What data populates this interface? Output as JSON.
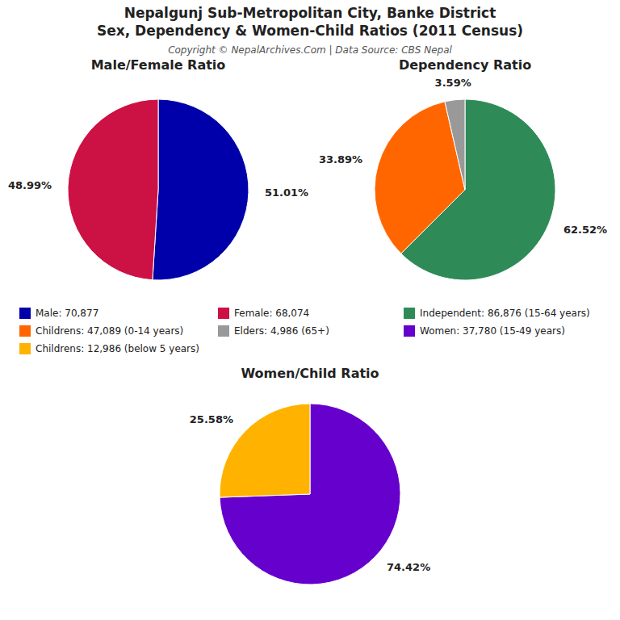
{
  "title": [
    "Nepalgunj Sub-Metropolitan City, Banke District",
    "Sex, Dependency & Women-Child Ratios (2011 Census)"
  ],
  "subtitle": "Copyright © NepalArchives.Com | Data Source: CBS Nepal",
  "chart_data": [
    {
      "type": "pie",
      "title": "Male/Female Ratio",
      "categories": [
        "Male: 70,877",
        "Female: 68,074"
      ],
      "values": [
        51.01,
        48.99
      ],
      "value_labels": [
        "51.01%",
        "48.99%"
      ],
      "colors": [
        "#0000AA",
        "#CC1144"
      ],
      "data_labels": true,
      "legend": true
    },
    {
      "type": "pie",
      "title": "Dependency Ratio",
      "categories": [
        "Independent: 86,876 (15-64 years)",
        "Childrens: 47,089 (0-14 years)",
        "Elders: 4,986 (65+)"
      ],
      "values": [
        62.52,
        33.89,
        3.59
      ],
      "value_labels": [
        "62.52%",
        "33.89%",
        "3.59%"
      ],
      "colors": [
        "#2E8B57",
        "#FF6600",
        "#999999"
      ],
      "data_labels": true,
      "legend": true
    },
    {
      "type": "pie",
      "title": "Women/Child Ratio",
      "categories": [
        "Women: 37,780 (15-49 years)",
        "Childrens: 12,986 (below 5 years)"
      ],
      "values": [
        74.42,
        25.58
      ],
      "value_labels": [
        "74.42%",
        "25.58%"
      ],
      "colors": [
        "#6600CC",
        "#FFB300"
      ],
      "data_labels": true,
      "legend": true
    }
  ]
}
